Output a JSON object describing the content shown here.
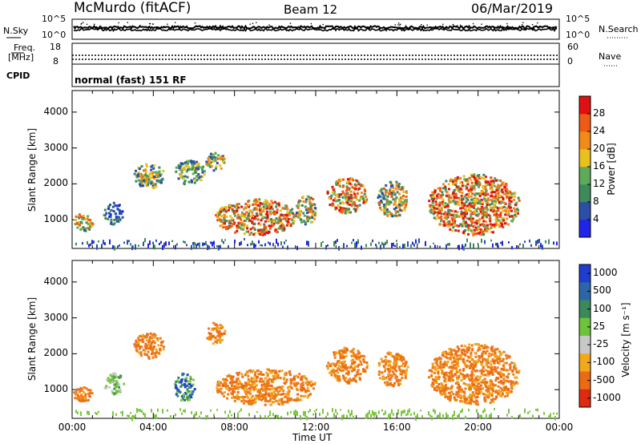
{
  "header": {
    "station": "McMurdo (fitACF)",
    "beam": "Beam 12",
    "date": "06/Mar/2019"
  },
  "sky_panel": {
    "left_label": "N.Sky",
    "right_label": "N.Search",
    "left_ticks": [
      "10^5",
      "10^0"
    ],
    "right_ticks": [
      "10^5",
      "10^0"
    ]
  },
  "freq_panel": {
    "left_label_1": "Freq.",
    "left_label_2": "[MHz]",
    "right_label": "Nave",
    "left_ticks": [
      "18",
      "8"
    ],
    "right_ticks": [
      "60",
      "0"
    ]
  },
  "cpid_panel": {
    "label": "CPID",
    "text": "normal (fast) 151 RF"
  },
  "x_axis": {
    "title": "Time UT",
    "tick_labels": [
      "00:00",
      "04:00",
      "08:00",
      "12:00",
      "16:00",
      "20:00",
      "00:00"
    ]
  },
  "colors": {
    "power_scale": [
      "#1f24e8",
      "#2a4fa5",
      "#3e8a5a",
      "#5daa5a",
      "#e8c11d",
      "#f28a1a",
      "#ef5a14",
      "#e01010"
    ],
    "velocity_scale": [
      "#1f3ed0",
      "#2d66a8",
      "#3a8a5c",
      "#6fc23c",
      "#c8c8c8",
      "#f2a81b",
      "#ec6a12",
      "#e02a10"
    ],
    "velocity_orange": "#ed7a1a",
    "velocity_green": "#7cc83f"
  },
  "chart_data": [
    {
      "type": "heatmap",
      "name": "power",
      "ylabel": "Slant Range [km]",
      "xlabel": "",
      "ylim": [
        200,
        4600
      ],
      "y_ticks": [
        1000,
        2000,
        3000,
        4000
      ],
      "x_range_hours": [
        0,
        24
      ],
      "colorbar": {
        "title": "Power [dB]",
        "range": [
          0,
          32
        ],
        "tick_values": [
          4,
          8,
          12,
          16,
          20,
          24,
          28
        ]
      },
      "echo_regions": [
        {
          "start": "00:00",
          "end": "01:00",
          "range_km": [
            700,
            1200
          ],
          "level": "mixed 4-24"
        },
        {
          "start": "01:30",
          "end": "02:30",
          "range_km": [
            900,
            1500
          ],
          "level": "4-12"
        },
        {
          "start": "03:00",
          "end": "04:30",
          "range_km": [
            1900,
            2600
          ],
          "level": "8-20"
        },
        {
          "start": "05:00",
          "end": "06:30",
          "range_km": [
            2000,
            2700
          ],
          "level": "8-16"
        },
        {
          "start": "06:30",
          "end": "07:30",
          "range_km": [
            2400,
            2900
          ],
          "level": "8-20"
        },
        {
          "start": "07:00",
          "end": "11:00",
          "range_km": [
            600,
            1600
          ],
          "level": "12-32"
        },
        {
          "start": "11:00",
          "end": "12:00",
          "range_km": [
            900,
            1700
          ],
          "level": "12-24"
        },
        {
          "start": "12:30",
          "end": "14:30",
          "range_km": [
            1200,
            2200
          ],
          "level": "12-28"
        },
        {
          "start": "15:00",
          "end": "16:30",
          "range_km": [
            1100,
            2100
          ],
          "level": "12-24"
        },
        {
          "start": "17:30",
          "end": "22:00",
          "range_km": [
            600,
            2300
          ],
          "level": "12-32"
        }
      ]
    },
    {
      "type": "heatmap",
      "name": "velocity",
      "ylabel": "Slant Range [km]",
      "xlabel": "Time UT",
      "ylim": [
        200,
        4600
      ],
      "y_ticks": [
        1000,
        2000,
        3000,
        4000
      ],
      "x_range_hours": [
        0,
        24
      ],
      "colorbar": {
        "title": "Velocity [m s⁻¹]",
        "tick_labels": [
          "1000",
          "500",
          "100",
          "25",
          "-25",
          "-100",
          "-500",
          "-1000"
        ]
      },
      "echo_regions": [
        {
          "start": "00:00",
          "end": "01:00",
          "range_km": [
            700,
            1100
          ],
          "velocity": "-100 to -500"
        },
        {
          "start": "01:30",
          "end": "02:30",
          "range_km": [
            900,
            1500
          ],
          "velocity": "25 to 100"
        },
        {
          "start": "03:00",
          "end": "04:30",
          "range_km": [
            1900,
            2600
          ],
          "velocity": "-100 to -500"
        },
        {
          "start": "05:00",
          "end": "06:00",
          "range_km": [
            700,
            1500
          ],
          "velocity": "100 to 1000"
        },
        {
          "start": "06:30",
          "end": "07:30",
          "range_km": [
            2300,
            2900
          ],
          "velocity": "-100 to -500"
        },
        {
          "start": "07:00",
          "end": "12:00",
          "range_km": [
            600,
            1600
          ],
          "velocity": "-100 to -500"
        },
        {
          "start": "12:30",
          "end": "14:30",
          "range_km": [
            1200,
            2200
          ],
          "velocity": "-100 to -500"
        },
        {
          "start": "15:00",
          "end": "16:30",
          "range_km": [
            1100,
            2100
          ],
          "velocity": "-100 to -500"
        },
        {
          "start": "17:30",
          "end": "22:00",
          "range_km": [
            600,
            2300
          ],
          "velocity": "-100 to -500"
        }
      ]
    }
  ]
}
